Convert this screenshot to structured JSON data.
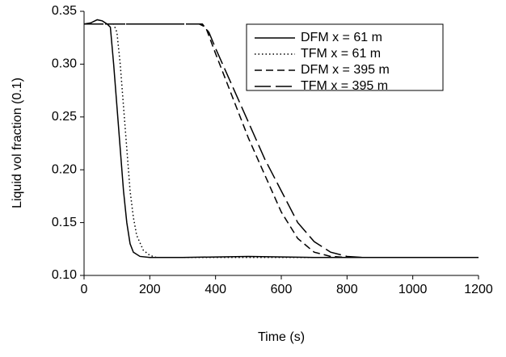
{
  "chart_data": {
    "type": "line",
    "xlabel": "Time (s)",
    "ylabel": "Liquid vol fraction (0.1)",
    "xlim": [
      0,
      1200
    ],
    "xticks": [
      0,
      200,
      400,
      600,
      800,
      1000,
      1200
    ],
    "ylim": [
      0.1,
      0.35
    ],
    "yticks": [
      {
        "value": 0.1,
        "label": "0.10"
      },
      0.15,
      {
        "value": 0.2,
        "label": "0.20"
      },
      0.25,
      {
        "value": 0.3,
        "label": "0.30"
      },
      0.35
    ],
    "legend": "upper right",
    "series": [
      {
        "name": "DFM x = 61 m",
        "color": "#000000",
        "style": "solid",
        "x": [
          0,
          20,
          40,
          55,
          70,
          80,
          90,
          100,
          110,
          120,
          130,
          140,
          150,
          170,
          200,
          300,
          500,
          700,
          900,
          1200
        ],
        "values": [
          0.338,
          0.339,
          0.342,
          0.341,
          0.338,
          0.335,
          0.3,
          0.26,
          0.22,
          0.18,
          0.15,
          0.13,
          0.122,
          0.118,
          0.117,
          0.117,
          0.118,
          0.117,
          0.117,
          0.117
        ]
      },
      {
        "name": "TFM x = 61 m",
        "color": "#000000",
        "style": "dotted",
        "x": [
          0,
          90,
          100,
          110,
          120,
          130,
          140,
          150,
          160,
          180,
          200,
          220,
          1200
        ],
        "values": [
          0.338,
          0.338,
          0.33,
          0.3,
          0.26,
          0.22,
          0.18,
          0.155,
          0.138,
          0.124,
          0.119,
          0.117,
          0.117
        ]
      },
      {
        "name": "DFM x = 395 m",
        "color": "#000000",
        "style": "dashed",
        "x": [
          0,
          350,
          370,
          400,
          450,
          500,
          550,
          600,
          650,
          700,
          750,
          800,
          1200
        ],
        "values": [
          0.338,
          0.338,
          0.335,
          0.31,
          0.27,
          0.23,
          0.195,
          0.16,
          0.135,
          0.122,
          0.118,
          0.117,
          0.117
        ]
      },
      {
        "name": "TFM x = 395 m",
        "color": "#000000",
        "style": "longdash",
        "x": [
          0,
          360,
          380,
          400,
          450,
          500,
          550,
          600,
          650,
          700,
          750,
          800,
          850,
          1200
        ],
        "values": [
          0.338,
          0.338,
          0.33,
          0.315,
          0.28,
          0.245,
          0.21,
          0.18,
          0.15,
          0.132,
          0.122,
          0.118,
          0.117,
          0.117
        ]
      }
    ]
  }
}
